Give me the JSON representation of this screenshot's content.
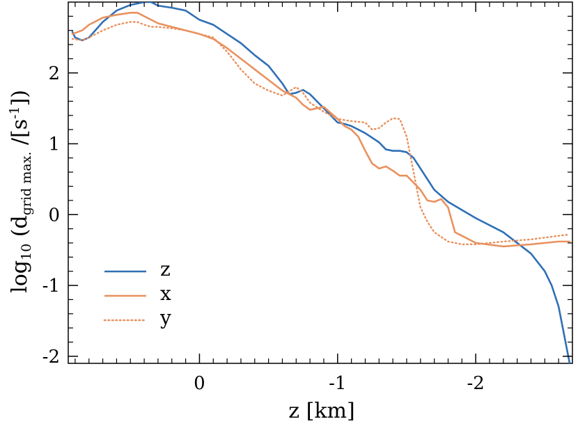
{
  "chart_data": {
    "type": "line",
    "xlabel": "z [km]",
    "ylabel": {
      "prefix": "log",
      "prefix_sub": "10",
      "open": " (d",
      "d_sub": "grid max.",
      "mid": " /[s",
      "unit_sup": "-1",
      "close": "])"
    },
    "xlim": [
      0.95,
      -2.7
    ],
    "ylim": [
      -2.1,
      3.0
    ],
    "x_ticks": [
      0,
      -1,
      -2
    ],
    "x_tick_labels": [
      "0",
      "-1",
      "-2"
    ],
    "y_ticks": [
      -2,
      -1,
      0,
      1,
      2
    ],
    "y_tick_labels": [
      "-2",
      "-1",
      "0",
      "1",
      "2"
    ],
    "legend_position": "bottom-left",
    "series": [
      {
        "name": "z",
        "color": "#2f6fb5",
        "style": "solid",
        "x": [
          0.92,
          0.9,
          0.85,
          0.8,
          0.7,
          0.6,
          0.5,
          0.4,
          0.35,
          0.3,
          0.2,
          0.1,
          0.0,
          -0.1,
          -0.2,
          -0.3,
          -0.4,
          -0.5,
          -0.6,
          -0.65,
          -0.7,
          -0.75,
          -0.8,
          -0.9,
          -1.0,
          -1.05,
          -1.1,
          -1.2,
          -1.3,
          -1.35,
          -1.4,
          -1.45,
          -1.5,
          -1.55,
          -1.6,
          -1.7,
          -1.8,
          -2.0,
          -2.2,
          -2.4,
          -2.5,
          -2.55,
          -2.6,
          -2.65,
          -2.68
        ],
        "y": [
          2.58,
          2.5,
          2.46,
          2.5,
          2.72,
          2.88,
          2.96,
          3.0,
          3.0,
          2.95,
          2.92,
          2.88,
          2.75,
          2.68,
          2.55,
          2.42,
          2.25,
          2.1,
          1.85,
          1.7,
          1.72,
          1.76,
          1.7,
          1.5,
          1.3,
          1.28,
          1.25,
          1.15,
          1.02,
          0.92,
          0.9,
          0.9,
          0.88,
          0.8,
          0.65,
          0.35,
          0.18,
          -0.05,
          -0.25,
          -0.55,
          -0.8,
          -1.0,
          -1.3,
          -1.8,
          -2.1
        ]
      },
      {
        "name": "x",
        "color": "#e8915e",
        "style": "solid",
        "x": [
          0.92,
          0.85,
          0.8,
          0.7,
          0.6,
          0.5,
          0.45,
          0.4,
          0.35,
          0.3,
          0.2,
          0.1,
          0.0,
          -0.1,
          -0.2,
          -0.3,
          -0.4,
          -0.5,
          -0.6,
          -0.7,
          -0.75,
          -0.8,
          -0.85,
          -0.9,
          -1.0,
          -1.05,
          -1.1,
          -1.15,
          -1.2,
          -1.25,
          -1.28,
          -1.3,
          -1.35,
          -1.4,
          -1.45,
          -1.5,
          -1.55,
          -1.6,
          -1.65,
          -1.7,
          -1.75,
          -1.8,
          -1.85,
          -2.0,
          -2.2,
          -2.4,
          -2.6,
          -2.68
        ],
        "y": [
          2.55,
          2.6,
          2.68,
          2.78,
          2.82,
          2.85,
          2.85,
          2.8,
          2.75,
          2.7,
          2.65,
          2.6,
          2.55,
          2.48,
          2.35,
          2.2,
          2.05,
          1.9,
          1.75,
          1.65,
          1.55,
          1.48,
          1.5,
          1.52,
          1.35,
          1.25,
          1.2,
          1.1,
          0.9,
          0.72,
          0.68,
          0.65,
          0.68,
          0.62,
          0.55,
          0.55,
          0.45,
          0.35,
          0.2,
          0.18,
          0.22,
          0.1,
          -0.25,
          -0.4,
          -0.45,
          -0.42,
          -0.38,
          -0.38
        ]
      },
      {
        "name": "y",
        "color": "#e8915e",
        "style": "dotted",
        "x": [
          0.92,
          0.85,
          0.8,
          0.7,
          0.6,
          0.5,
          0.45,
          0.4,
          0.35,
          0.3,
          0.2,
          0.1,
          0.0,
          -0.1,
          -0.2,
          -0.3,
          -0.4,
          -0.5,
          -0.6,
          -0.7,
          -0.75,
          -0.8,
          -0.9,
          -1.0,
          -1.1,
          -1.2,
          -1.25,
          -1.3,
          -1.35,
          -1.4,
          -1.45,
          -1.5,
          -1.55,
          -1.58,
          -1.6,
          -1.65,
          -1.7,
          -1.8,
          -1.9,
          -2.0,
          -2.2,
          -2.4,
          -2.6,
          -2.68
        ],
        "y": [
          2.48,
          2.46,
          2.5,
          2.6,
          2.68,
          2.72,
          2.72,
          2.68,
          2.65,
          2.65,
          2.63,
          2.6,
          2.55,
          2.5,
          2.3,
          2.05,
          1.85,
          1.75,
          1.68,
          1.8,
          1.72,
          1.58,
          1.45,
          1.35,
          1.32,
          1.3,
          1.2,
          1.22,
          1.3,
          1.36,
          1.35,
          1.1,
          0.6,
          0.3,
          0.1,
          -0.1,
          -0.25,
          -0.38,
          -0.42,
          -0.42,
          -0.38,
          -0.35,
          -0.3,
          -0.28
        ]
      }
    ]
  }
}
